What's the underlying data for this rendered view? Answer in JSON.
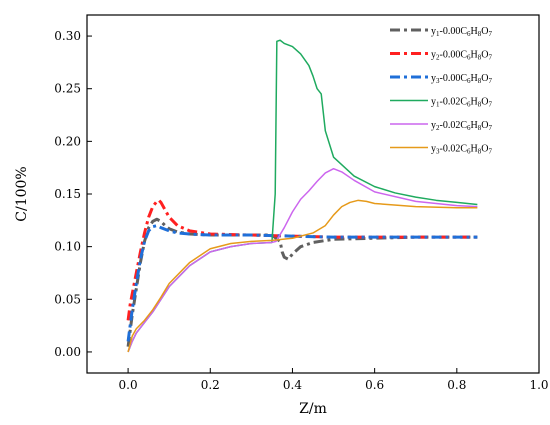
{
  "chart_data": {
    "type": "line",
    "xlabel": "Z/m",
    "ylabel": "C/100%",
    "xlim": [
      -0.1,
      1.0
    ],
    "ylim": [
      -0.02,
      0.32
    ],
    "xticks": [
      "0.0",
      "0.2",
      "0.4",
      "0.6",
      "0.8",
      "1.0"
    ],
    "yticks": [
      "0.00",
      "0.05",
      "0.10",
      "0.15",
      "0.20",
      "0.25",
      "0.30"
    ],
    "grid": false,
    "legend_position": "top-right",
    "series": [
      {
        "name": "y1-0.00C6H8O7",
        "label": {
          "a": "y",
          "b": "1",
          "c": "-0.00C",
          "d": "6",
          "e": "H",
          "f": "8",
          "g": "O",
          "h": "7"
        },
        "color": "#606060",
        "style": "dashdot",
        "x": [
          0.0,
          0.005,
          0.01,
          0.02,
          0.03,
          0.04,
          0.05,
          0.06,
          0.07,
          0.08,
          0.09,
          0.1,
          0.12,
          0.15,
          0.2,
          0.25,
          0.3,
          0.35,
          0.37,
          0.375,
          0.38,
          0.39,
          0.4,
          0.42,
          0.45,
          0.5,
          0.6,
          0.7,
          0.8,
          0.85
        ],
        "y": [
          0.005,
          0.02,
          0.035,
          0.06,
          0.085,
          0.105,
          0.118,
          0.124,
          0.126,
          0.124,
          0.12,
          0.117,
          0.114,
          0.112,
          0.111,
          0.111,
          0.111,
          0.111,
          0.105,
          0.095,
          0.09,
          0.088,
          0.093,
          0.1,
          0.104,
          0.107,
          0.108,
          0.109,
          0.109,
          0.109
        ]
      },
      {
        "name": "y2-0.00C6H8O7",
        "label": {
          "a": "y",
          "b": "2",
          "c": "-0.00C",
          "d": "6",
          "e": "H",
          "f": "8",
          "g": "O",
          "h": "7"
        },
        "color": "#ff2020",
        "style": "dashdot",
        "x": [
          0.0,
          0.005,
          0.01,
          0.02,
          0.03,
          0.04,
          0.05,
          0.06,
          0.07,
          0.075,
          0.08,
          0.09,
          0.1,
          0.12,
          0.15,
          0.2,
          0.3,
          0.4,
          0.5,
          0.6,
          0.7,
          0.8,
          0.85
        ],
        "y": [
          0.03,
          0.045,
          0.055,
          0.075,
          0.095,
          0.113,
          0.128,
          0.138,
          0.143,
          0.144,
          0.142,
          0.135,
          0.128,
          0.12,
          0.115,
          0.112,
          0.111,
          0.11,
          0.109,
          0.109,
          0.109,
          0.109,
          0.109
        ]
      },
      {
        "name": "y3-0.00C6H8O7",
        "label": {
          "a": "y",
          "b": "3",
          "c": "-0.00C",
          "d": "6",
          "e": "H",
          "f": "8",
          "g": "O",
          "h": "7"
        },
        "color": "#1f6fd8",
        "style": "dashdot",
        "x": [
          0.0,
          0.005,
          0.01,
          0.02,
          0.03,
          0.04,
          0.05,
          0.06,
          0.07,
          0.08,
          0.1,
          0.12,
          0.15,
          0.2,
          0.3,
          0.4,
          0.5,
          0.6,
          0.7,
          0.8,
          0.85
        ],
        "y": [
          0.01,
          0.025,
          0.04,
          0.065,
          0.088,
          0.105,
          0.115,
          0.119,
          0.12,
          0.118,
          0.115,
          0.113,
          0.112,
          0.111,
          0.111,
          0.11,
          0.109,
          0.109,
          0.109,
          0.109,
          0.109
        ]
      },
      {
        "name": "y1-0.02C6H8O7",
        "label": {
          "a": "y",
          "b": "1",
          "c": "-0.02C",
          "d": "6",
          "e": "H",
          "f": "8",
          "g": "O",
          "h": "7"
        },
        "color": "#1faa5f",
        "style": "solid",
        "x": [
          0.0,
          0.01,
          0.02,
          0.04,
          0.06,
          0.08,
          0.1,
          0.15,
          0.2,
          0.25,
          0.3,
          0.35,
          0.358,
          0.362,
          0.37,
          0.38,
          0.4,
          0.42,
          0.44,
          0.45,
          0.46,
          0.47,
          0.48,
          0.5,
          0.55,
          0.6,
          0.65,
          0.7,
          0.75,
          0.8,
          0.85
        ],
        "y": [
          0.0,
          0.01,
          0.018,
          0.028,
          0.038,
          0.05,
          0.062,
          0.082,
          0.095,
          0.1,
          0.103,
          0.104,
          0.15,
          0.295,
          0.296,
          0.293,
          0.29,
          0.283,
          0.272,
          0.262,
          0.25,
          0.245,
          0.21,
          0.185,
          0.167,
          0.157,
          0.151,
          0.147,
          0.144,
          0.142,
          0.14
        ]
      },
      {
        "name": "y2-0.02C6H8O7",
        "label": {
          "a": "y",
          "b": "2",
          "c": "-0.02C",
          "d": "6",
          "e": "H",
          "f": "8",
          "g": "O",
          "h": "7"
        },
        "color": "#cc66ee",
        "style": "solid",
        "x": [
          0.0,
          0.01,
          0.02,
          0.04,
          0.06,
          0.08,
          0.1,
          0.15,
          0.2,
          0.25,
          0.3,
          0.35,
          0.36,
          0.38,
          0.4,
          0.42,
          0.44,
          0.46,
          0.48,
          0.5,
          0.52,
          0.55,
          0.6,
          0.7,
          0.8,
          0.85
        ],
        "y": [
          0.0,
          0.01,
          0.018,
          0.028,
          0.038,
          0.05,
          0.062,
          0.082,
          0.095,
          0.1,
          0.103,
          0.104,
          0.105,
          0.118,
          0.133,
          0.145,
          0.153,
          0.162,
          0.17,
          0.174,
          0.171,
          0.163,
          0.152,
          0.143,
          0.139,
          0.138
        ]
      },
      {
        "name": "y3-0.02C6H8O7",
        "label": {
          "a": "y",
          "b": "3",
          "c": "-0.02C",
          "d": "6",
          "e": "H",
          "f": "8",
          "g": "O",
          "h": "7"
        },
        "color": "#e69a1a",
        "style": "solid",
        "x": [
          0.0,
          0.01,
          0.02,
          0.04,
          0.06,
          0.08,
          0.1,
          0.15,
          0.2,
          0.25,
          0.3,
          0.35,
          0.4,
          0.45,
          0.48,
          0.5,
          0.52,
          0.54,
          0.56,
          0.58,
          0.6,
          0.7,
          0.8,
          0.85
        ],
        "y": [
          0.0,
          0.015,
          0.022,
          0.03,
          0.04,
          0.052,
          0.065,
          0.085,
          0.098,
          0.103,
          0.105,
          0.106,
          0.108,
          0.113,
          0.12,
          0.13,
          0.138,
          0.142,
          0.144,
          0.143,
          0.141,
          0.138,
          0.137,
          0.137
        ]
      }
    ]
  }
}
